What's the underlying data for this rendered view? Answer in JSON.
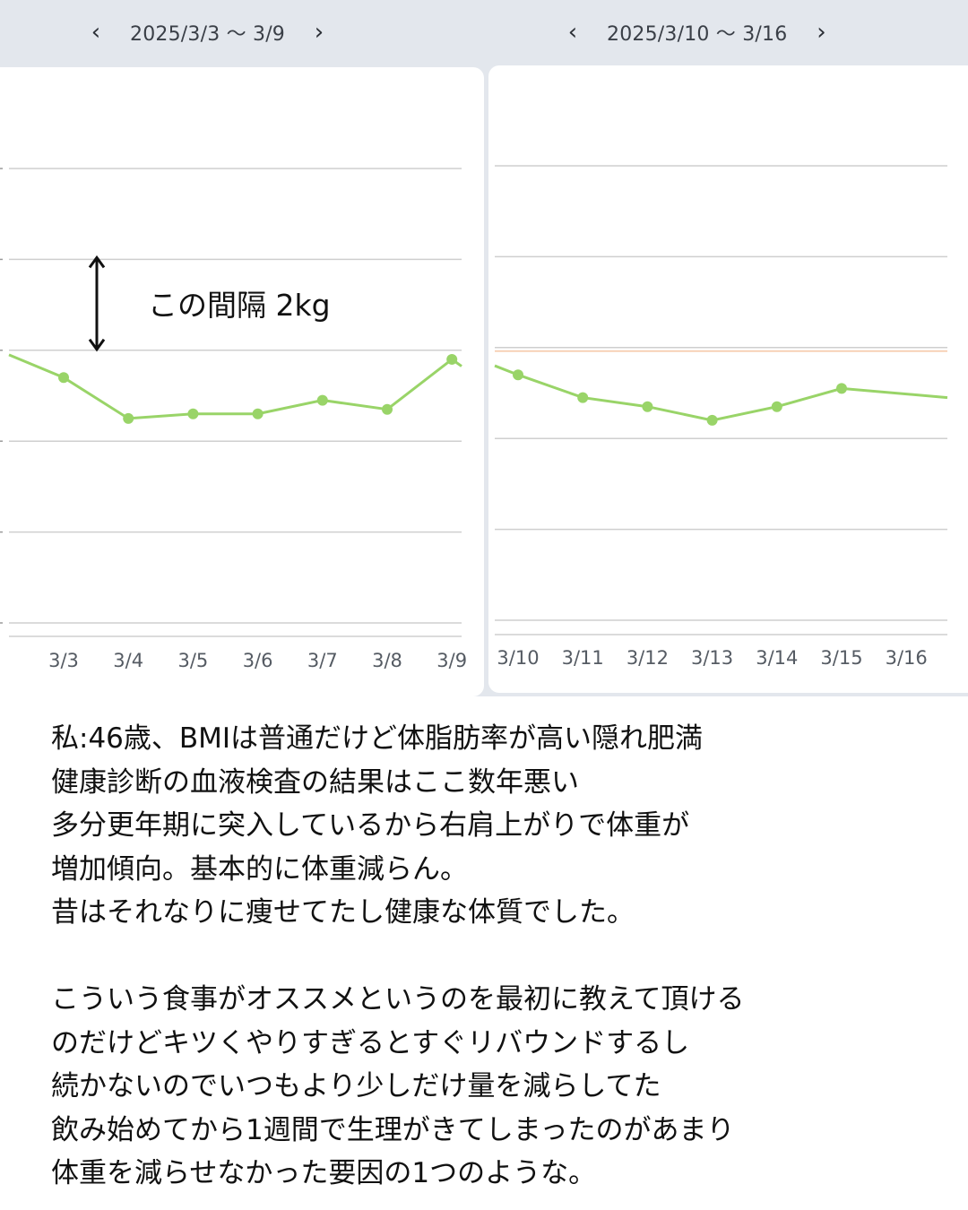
{
  "nav": {
    "left": {
      "range": "2025/3/3 〜 3/9",
      "prev_icon": "chevron-left-icon",
      "next_icon": "chevron-right-icon"
    },
    "right": {
      "range": "2025/3/10 〜 3/16",
      "prev_icon": "chevron-left-icon",
      "next_icon": "chevron-right-icon"
    }
  },
  "annotation": {
    "label": "この間隔 2kg",
    "icon": "double-arrow-vertical-icon"
  },
  "colors": {
    "line": "#99d468",
    "grid": "#cfcfcf",
    "reference": "#f5c7a6",
    "background": "#e3e7ed"
  },
  "chart_data": [
    {
      "type": "line",
      "categories": [
        "3/3",
        "3/4",
        "3/5",
        "3/6",
        "3/7",
        "3/8",
        "3/9"
      ],
      "values": [
        -0.6,
        -1.5,
        -1.4,
        -1.4,
        -1.1,
        -1.3,
        -0.2
      ],
      "ylim": [
        -6,
        4
      ],
      "grid": true,
      "grid_step": 2
    },
    {
      "type": "line",
      "categories": [
        "3/10",
        "3/11",
        "3/12",
        "3/13",
        "3/14",
        "3/15",
        "3/16"
      ],
      "values": [
        -0.6,
        -1.1,
        -1.3,
        -1.6,
        -1.3,
        -0.9,
        -1.1
      ],
      "ylim": [
        -6,
        4
      ],
      "grid": true,
      "grid_step": 2,
      "reference_line": 0
    }
  ],
  "text": {
    "lines": [
      "私:46歳、BMIは普通だけど体脂肪率が高い隠れ肥満",
      "健康診断の血液検査の結果はここ数年悪い",
      "多分更年期に突入しているから右肩上がりで体重が",
      "増加傾向。基本的に体重減らん。",
      "昔はそれなりに痩せてたし健康な体質でした。",
      "",
      "こういう食事がオススメというのを最初に教えて頂ける",
      "のだけどキツくやりすぎるとすぐリバウンドするし",
      "続かないのでいつもより少しだけ量を減らしてた",
      "飲み始めてから1週間で生理がきてしまったのがあまり",
      "体重を減らせなかった要因の1つのような。"
    ]
  }
}
